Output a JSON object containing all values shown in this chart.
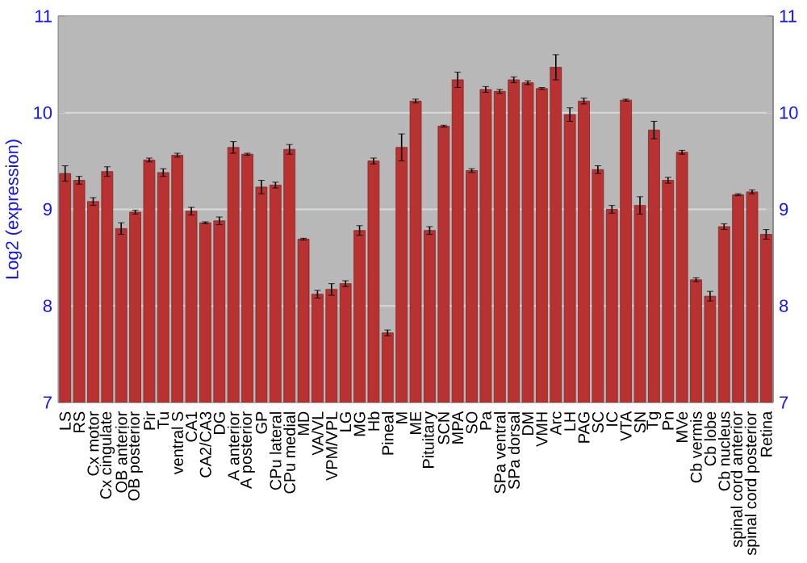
{
  "chart_data": {
    "type": "bar",
    "ylabel": "Log2 (expression)",
    "categories": [
      "LS",
      "RS",
      "Cx motor",
      "Cx cingulate",
      "OB anterior",
      "OB posterior",
      "Pir",
      "Tu",
      "ventral S",
      "CA1",
      "CA2/CA3",
      "DG",
      "A anterior",
      "A posterior",
      "GP",
      "CPu lateral",
      "CPu medial",
      "MD",
      "VA/VL",
      "VPM/VPL",
      "LG",
      "MG",
      "Hb",
      "Pineal",
      "M",
      "ME",
      "Pituitary",
      "SCN",
      "MPA",
      "SO",
      "Pa",
      "SPa ventral",
      "SPa dorsal",
      "DM",
      "VMH",
      "Arc",
      "LH",
      "PAG",
      "SC",
      "IC",
      "VTA",
      "SN",
      "Tg",
      "Pn",
      "MVe",
      "Cb vermis",
      "Cb lobe",
      "Cb nucleus",
      "spinal cord anterior",
      "spinal cord posterior",
      "Retina"
    ],
    "values": [
      9.37,
      9.3,
      9.08,
      9.39,
      8.8,
      8.97,
      9.51,
      9.38,
      9.56,
      8.98,
      8.86,
      8.88,
      9.64,
      9.57,
      9.23,
      9.25,
      9.62,
      8.69,
      8.12,
      8.17,
      8.23,
      8.78,
      9.5,
      7.72,
      9.64,
      10.12,
      8.78,
      9.86,
      10.34,
      9.4,
      10.24,
      10.22,
      10.34,
      10.31,
      10.25,
      10.47,
      9.98,
      10.12,
      9.41,
      9.0,
      10.13,
      9.04,
      9.82,
      9.3,
      9.59,
      8.27,
      8.1,
      8.82,
      9.15,
      9.18,
      8.74
    ],
    "errors": [
      0.08,
      0.04,
      0.04,
      0.05,
      0.06,
      0.02,
      0.02,
      0.04,
      0.02,
      0.04,
      0.01,
      0.04,
      0.06,
      0.01,
      0.07,
      0.03,
      0.05,
      0.01,
      0.04,
      0.06,
      0.03,
      0.05,
      0.03,
      0.03,
      0.14,
      0.02,
      0.04,
      0.01,
      0.08,
      0.02,
      0.03,
      0.02,
      0.03,
      0.02,
      0.01,
      0.13,
      0.07,
      0.03,
      0.04,
      0.04,
      0.01,
      0.09,
      0.09,
      0.03,
      0.02,
      0.02,
      0.05,
      0.03,
      0.01,
      0.02,
      0.05
    ],
    "color": "#b83232",
    "ylim": [
      7,
      11
    ],
    "yticks": [
      7,
      8,
      9,
      10,
      11
    ],
    "y2lim": [
      7,
      11
    ],
    "y2ticks": [
      7,
      8,
      9,
      10,
      11
    ],
    "grid": "y"
  }
}
